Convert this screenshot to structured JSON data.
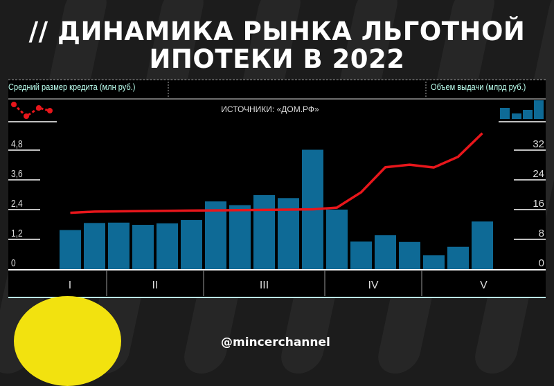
{
  "title_line1": "// ДИНАМИКА РЫНКА ЛЬГОТНОЙ",
  "title_line2": "ИПОТЕКИ В 2022",
  "handle": "@mincerchannel",
  "chart_data": {
    "type": "bar+line",
    "source_note": "ИСТОЧНИКИ: «ДОМ.РФ»",
    "left_axis_label": "Средний размер кредита (млн руб.)",
    "right_axis_label": "Объем выдачи (млрд руб.)",
    "left_ticks": [
      "0",
      "1,2",
      "2,4",
      "3,6",
      "4,8"
    ],
    "right_ticks": [
      "0",
      "8",
      "16",
      "24",
      "32"
    ],
    "left_ylim": [
      0,
      4.8
    ],
    "right_ylim": [
      0,
      32
    ],
    "groups": [
      {
        "label": "I",
        "count": 2
      },
      {
        "label": "II",
        "count": 4
      },
      {
        "label": "III",
        "count": 5
      },
      {
        "label": "IV",
        "count": 4
      },
      {
        "label": "V",
        "count": 3
      }
    ],
    "series": [
      {
        "type": "bar",
        "axis": "right",
        "color": "#0e6a96",
        "values": [
          10.5,
          12.4,
          12.5,
          11.9,
          12.3,
          13.2,
          18.2,
          17.2,
          19.9,
          19.1,
          32.1,
          16.0,
          7.4,
          9.1,
          7.3,
          3.7,
          6.0,
          12.8
        ]
      },
      {
        "type": "line",
        "axis": "left",
        "color": "#e8161b",
        "values": [
          2.27,
          2.32,
          2.33,
          2.34,
          2.35,
          2.36,
          2.37,
          2.38,
          2.39,
          2.4,
          2.41,
          2.48,
          3.1,
          4.11,
          4.21,
          4.1,
          4.53,
          5.48
        ]
      }
    ]
  }
}
